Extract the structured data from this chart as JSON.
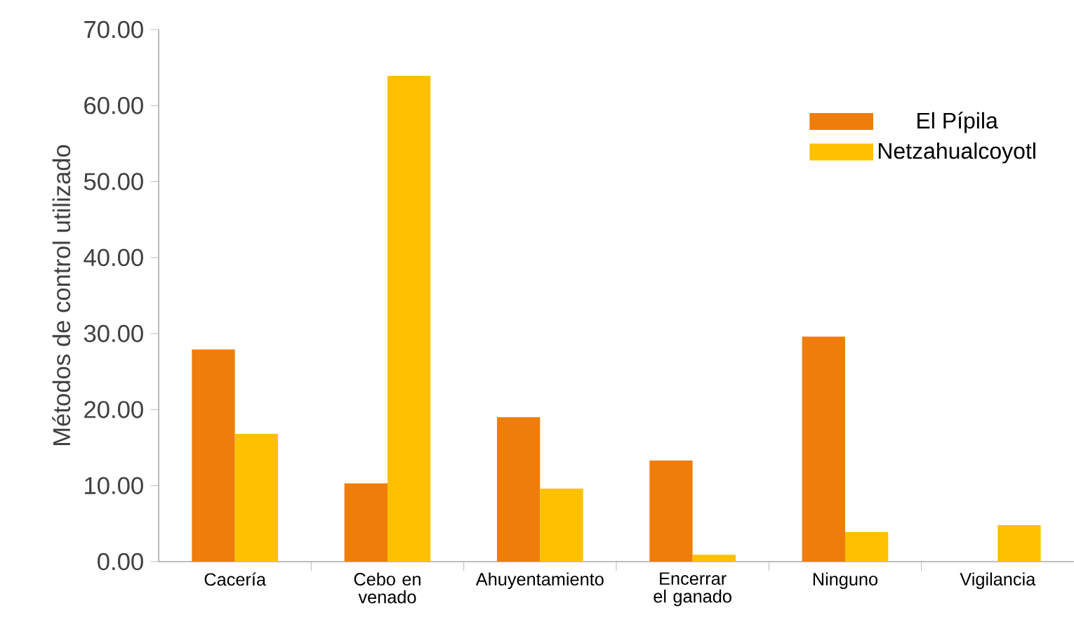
{
  "chart_data": {
    "type": "bar",
    "ylabel": "Métodos de control utilizado",
    "categories": [
      "Cacería",
      "Cebo en venado",
      "Ahuyentamiento",
      "Encerrar el ganado",
      "Ninguno",
      "Vigilancia"
    ],
    "series": [
      {
        "name": "El Pípila",
        "color": "#ef7d0b",
        "values": [
          27.9,
          10.3,
          19.0,
          13.3,
          29.6,
          0
        ]
      },
      {
        "name": "Netzahualcoyotl",
        "color": "#ffc000",
        "values": [
          16.8,
          63.9,
          9.6,
          0.9,
          3.9,
          4.8
        ]
      }
    ],
    "ylim": [
      0,
      70
    ],
    "yticks": [
      {
        "value": 0,
        "label": "0.00"
      },
      {
        "value": 10,
        "label": "10.00"
      },
      {
        "value": 20,
        "label": "20.00"
      },
      {
        "value": 30,
        "label": "30.00"
      },
      {
        "value": 40,
        "label": "40.00"
      },
      {
        "value": 50,
        "label": "50.00"
      },
      {
        "value": 60,
        "label": "60.00"
      },
      {
        "value": 70,
        "label": "70.00"
      }
    ],
    "grid": false,
    "legend": "top right"
  }
}
